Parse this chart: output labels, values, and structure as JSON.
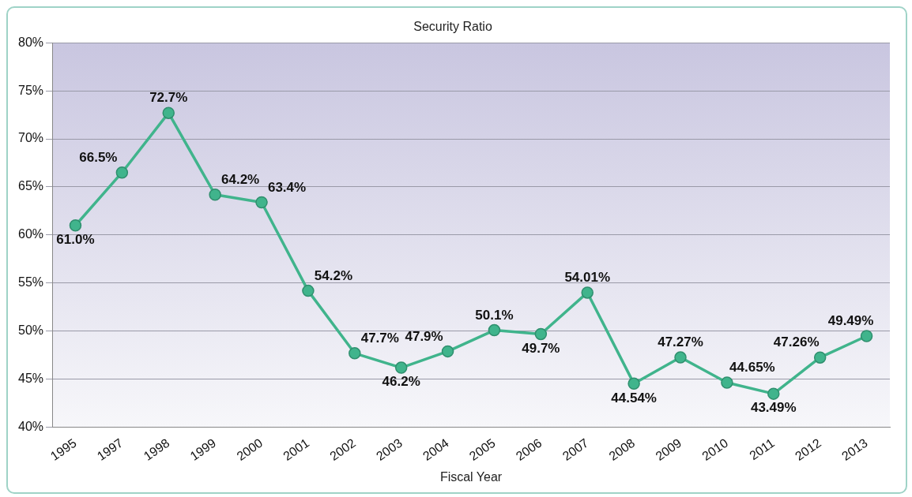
{
  "chart_data": {
    "type": "line",
    "title": "Security Ratio",
    "xlabel": "Fiscal Year",
    "categories": [
      "1995",
      "1997",
      "1998",
      "1999",
      "2000",
      "2001",
      "2002",
      "2003",
      "2004",
      "2005",
      "2006",
      "2007",
      "2008",
      "2009",
      "2010",
      "2011",
      "2012",
      "2013"
    ],
    "series": [
      {
        "color": "#40b48c",
        "values": [
          61.0,
          66.5,
          72.7,
          64.2,
          63.4,
          54.2,
          47.7,
          46.2,
          47.9,
          50.1,
          49.7,
          54.01,
          44.54,
          47.27,
          44.65,
          43.49,
          47.26,
          49.49
        ],
        "value_labels": [
          "61.0%",
          "66.5%",
          "72.7%",
          "64.2%",
          "63.4%",
          "54.2%",
          "47.7%",
          "46.2%",
          "47.9%",
          "50.1%",
          "49.7%",
          "54.01%",
          "44.54%",
          "47.27%",
          "44.65%",
          "43.49%",
          "47.26%",
          "49.49%"
        ]
      }
    ],
    "ylim": [
      40,
      80
    ],
    "yticks": [
      {
        "value": 40,
        "label": "40%"
      },
      {
        "value": 45,
        "label": "45%"
      },
      {
        "value": 50,
        "label": "50%"
      },
      {
        "value": 55,
        "label": "55%"
      },
      {
        "value": 60,
        "label": "60%"
      },
      {
        "value": 65,
        "label": "65%"
      },
      {
        "value": 70,
        "label": "70%"
      },
      {
        "value": 75,
        "label": "75%"
      },
      {
        "value": 80,
        "label": "80%"
      }
    ],
    "grid": "y",
    "marker": "circle",
    "line_style": "solid",
    "legend": false
  }
}
